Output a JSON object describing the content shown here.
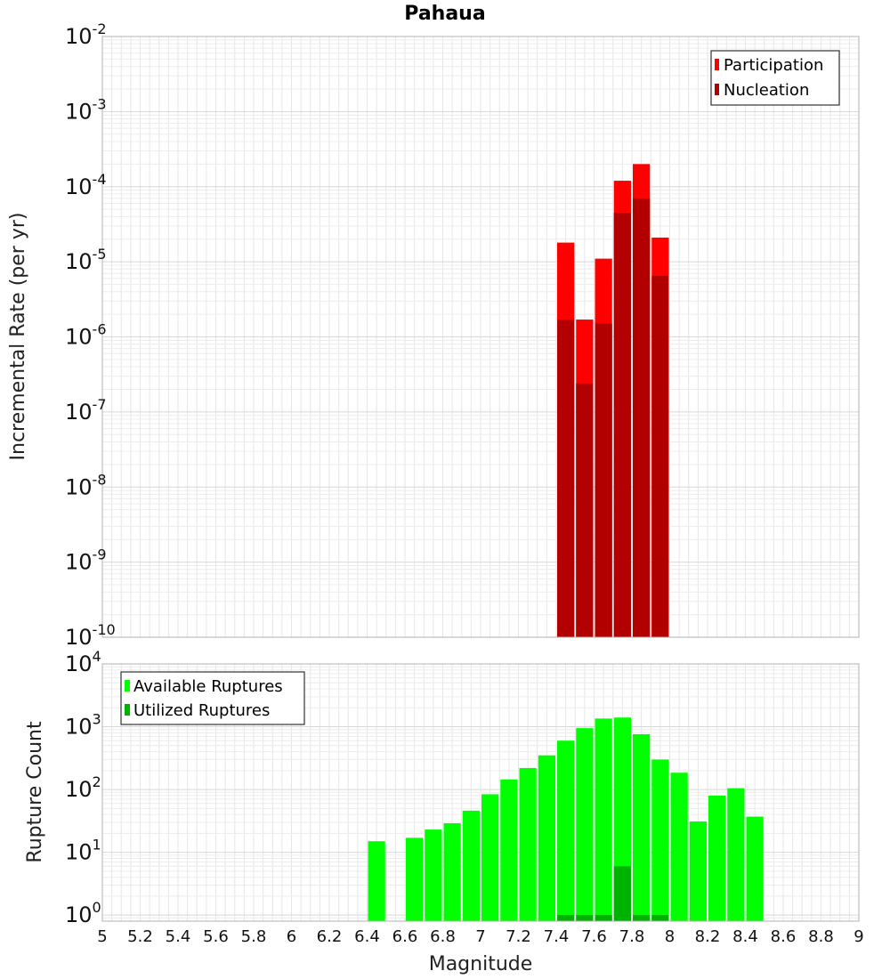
{
  "chart_data": [
    {
      "type": "bar",
      "title": "Pahaua",
      "xlabel": "",
      "ylabel": "Incremental Rate (per yr)",
      "yscale": "log",
      "ylim": [
        1e-10,
        0.01
      ],
      "xlim": [
        5,
        9
      ],
      "grid": true,
      "legend_position": "top-right",
      "x": [
        7.45,
        7.55,
        7.65,
        7.75,
        7.85,
        7.95
      ],
      "bar_width": 0.1,
      "series": [
        {
          "name": "Participation",
          "color": "#ff0000",
          "values": [
            1.8e-05,
            1.7e-06,
            1.1e-05,
            0.00012,
            0.0002,
            2.1e-05
          ]
        },
        {
          "name": "Nucleation",
          "color": "#b20000",
          "values": [
            1.7e-06,
            2.4e-07,
            1.5e-06,
            4.5e-05,
            7e-05,
            6.5e-06
          ]
        }
      ]
    },
    {
      "type": "bar",
      "title": "",
      "xlabel": "Magnitude",
      "ylabel": "Rupture Count",
      "yscale": "log",
      "ylim": [
        0.8,
        10000.0
      ],
      "xlim": [
        5,
        9
      ],
      "grid": true,
      "legend_position": "top-left",
      "x": [
        6.45,
        6.55,
        6.65,
        6.75,
        6.85,
        6.95,
        7.05,
        7.15,
        7.25,
        7.35,
        7.45,
        7.55,
        7.65,
        7.75,
        7.85,
        7.95,
        8.05,
        8.15,
        8.25,
        8.35,
        8.45
      ],
      "bar_width": 0.1,
      "series": [
        {
          "name": "Available Ruptures",
          "color": "#00ff00",
          "values": [
            15,
            null,
            17,
            23,
            29,
            46,
            84,
            145,
            220,
            350,
            600,
            950,
            1350,
            1400,
            760,
            300,
            185,
            31,
            80,
            105,
            37
          ]
        },
        {
          "name": "Utilized Ruptures",
          "color": "#00b200",
          "values": [
            null,
            null,
            null,
            null,
            null,
            null,
            null,
            null,
            null,
            null,
            1,
            1,
            1,
            6,
            1,
            1,
            null,
            null,
            null,
            null,
            null
          ]
        }
      ]
    }
  ],
  "x_ticks": [
    "5",
    "5.2",
    "5.4",
    "5.6",
    "5.8",
    "6",
    "6.2",
    "6.4",
    "6.6",
    "6.8",
    "7",
    "7.2",
    "7.4",
    "7.6",
    "7.8",
    "8",
    "8.2",
    "8.4",
    "8.6",
    "8.8",
    "9"
  ],
  "top_y_ticks": [
    {
      "base": "10",
      "exp": "-2"
    },
    {
      "base": "10",
      "exp": "-3"
    },
    {
      "base": "10",
      "exp": "-4"
    },
    {
      "base": "10",
      "exp": "-5"
    },
    {
      "base": "10",
      "exp": "-6"
    },
    {
      "base": "10",
      "exp": "-7"
    },
    {
      "base": "10",
      "exp": "-8"
    },
    {
      "base": "10",
      "exp": "-9"
    },
    {
      "base": "10",
      "exp": "-10"
    }
  ],
  "bottom_y_ticks": [
    {
      "base": "10",
      "exp": "4"
    },
    {
      "base": "10",
      "exp": "3"
    },
    {
      "base": "10",
      "exp": "2"
    },
    {
      "base": "10",
      "exp": "1"
    },
    {
      "base": "10",
      "exp": "0"
    }
  ]
}
